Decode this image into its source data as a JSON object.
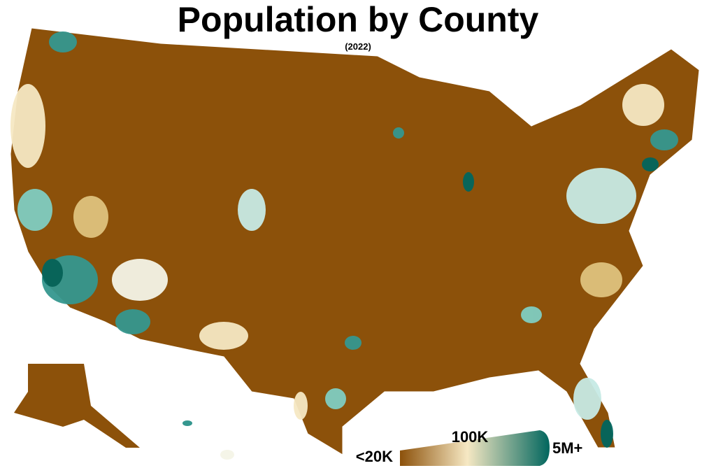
{
  "header": {
    "title": "Population by County",
    "subtitle": "(2022)"
  },
  "legend": {
    "labels": [
      "<20K",
      "100K",
      "5M+"
    ],
    "colors": [
      "#8c510a",
      "#f6e8c3",
      "#01665e"
    ]
  }
}
